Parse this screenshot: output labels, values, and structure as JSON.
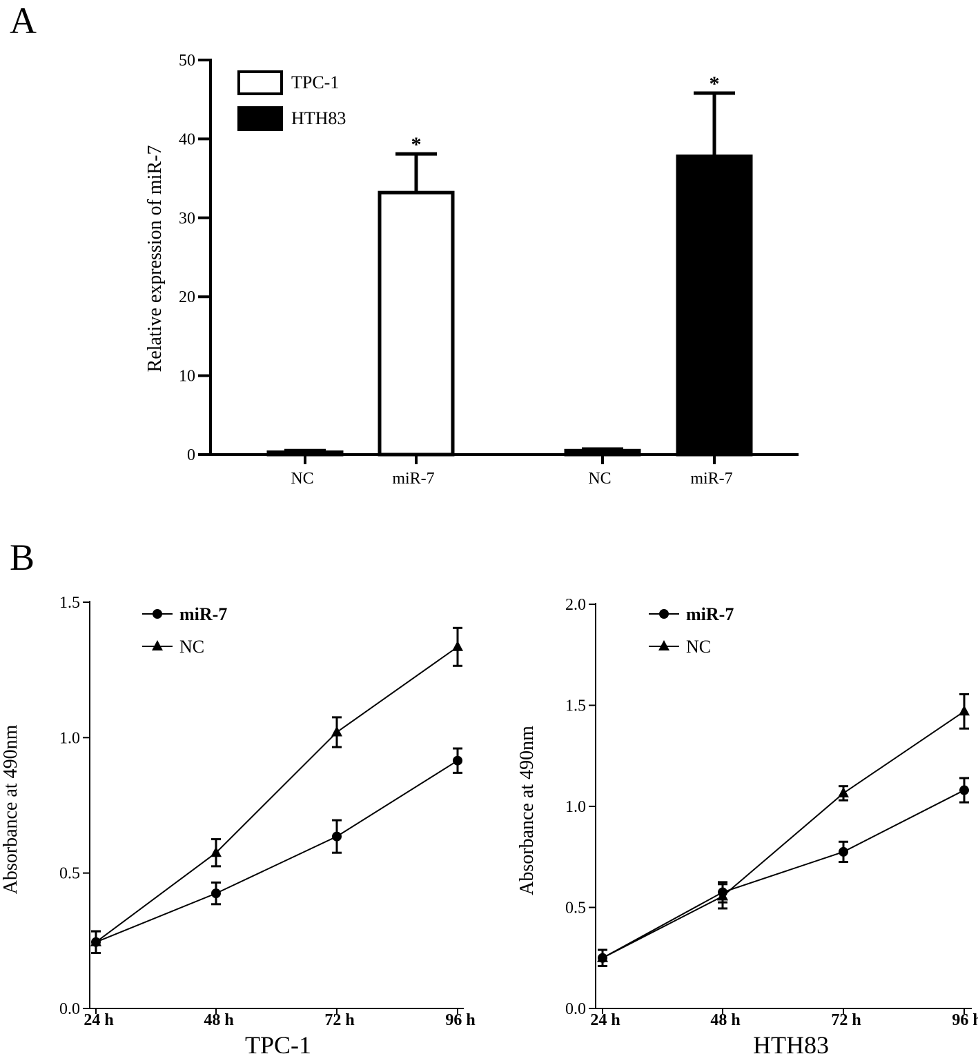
{
  "panels": {
    "a_letter": "A",
    "b_letter": "B"
  },
  "chart_data": [
    {
      "type": "bar",
      "panel": "A",
      "ylabel": "Relative expression of miR-7",
      "ylim": [
        0,
        50
      ],
      "yticks": [
        0,
        10,
        20,
        30,
        40,
        50
      ],
      "categories": [
        "NC",
        "miR-7",
        "NC",
        "miR-7"
      ],
      "series": [
        {
          "name": "TPC-1",
          "fill": "#ffffff",
          "values": [
            0.3,
            33.2,
            null,
            null
          ],
          "errors": [
            0.2,
            4.9,
            null,
            null
          ],
          "significance": [
            "",
            "*",
            "",
            ""
          ]
        },
        {
          "name": "HTH83",
          "fill": "#000000",
          "values": [
            null,
            null,
            0.5,
            37.8
          ],
          "errors": [
            null,
            null,
            0.2,
            8.0
          ],
          "significance": [
            "",
            "",
            "",
            "*"
          ]
        }
      ],
      "legend_position": "top-left",
      "grid": false
    },
    {
      "type": "line",
      "panel": "B",
      "title": "TPC-1",
      "xlabel": "",
      "ylabel": "Absorbance at 490nm",
      "categories": [
        "24 h",
        "48 h",
        "72 h",
        "96 h"
      ],
      "ylim": [
        0,
        1.5
      ],
      "yticks": [
        "0.0",
        "0.5",
        "1.0",
        "1.5"
      ],
      "series": [
        {
          "name": "miR-7",
          "marker": "circle",
          "values": [
            0.245,
            0.425,
            0.635,
            0.915
          ],
          "errors": [
            0.04,
            0.04,
            0.06,
            0.045
          ]
        },
        {
          "name": "NC",
          "marker": "triangle",
          "values": [
            0.245,
            0.575,
            1.02,
            1.335
          ],
          "errors": [
            0.04,
            0.05,
            0.055,
            0.07
          ]
        }
      ],
      "legend_position": "top-left",
      "grid": false
    },
    {
      "type": "line",
      "panel": "B",
      "title": "HTH83",
      "xlabel": "",
      "ylabel": "Absorbance at 490nm",
      "categories": [
        "24 h",
        "48 h",
        "72 h",
        "96 h"
      ],
      "ylim": [
        0,
        2.0
      ],
      "yticks": [
        "0.0",
        "0.5",
        "1.0",
        "1.5",
        "2.0"
      ],
      "series": [
        {
          "name": "miR-7",
          "marker": "circle",
          "values": [
            0.25,
            0.575,
            0.775,
            1.08
          ],
          "errors": [
            0.04,
            0.05,
            0.05,
            0.06
          ]
        },
        {
          "name": "NC",
          "marker": "triangle",
          "values": [
            0.25,
            0.555,
            1.065,
            1.47
          ],
          "errors": [
            0.04,
            0.06,
            0.035,
            0.085
          ]
        }
      ],
      "legend_position": "top-left",
      "grid": false
    }
  ]
}
